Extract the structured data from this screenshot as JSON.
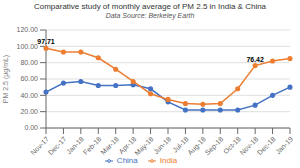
{
  "chart_data": {
    "type": "line",
    "title": "Comparative study of monthly average of PM 2.5 in India & China",
    "subtitle": "Data Source: Berkeley Earth",
    "ylabel": "PM 2.5 (μg/mL)",
    "categories": [
      "Nov-17",
      "Dec-17",
      "Jan-18",
      "Feb-18",
      "Mar-18",
      "Apr-18",
      "May-18",
      "Jun-18",
      "Jul-18",
      "Aug-18",
      "Sep-18",
      "Oct-18",
      "Nov-18",
      "Dec-18",
      "Jan-19"
    ],
    "series": [
      {
        "name": "China",
        "color": "#4472C4",
        "marker": "circle",
        "values": [
          44,
          55,
          57,
          52,
          52,
          53,
          48,
          32,
          22,
          22,
          22,
          22,
          28,
          40,
          50
        ]
      },
      {
        "name": "India",
        "color": "#ED7D31",
        "marker": "circle",
        "values": [
          97.71,
          93,
          93,
          86,
          72,
          57,
          42,
          35,
          30,
          29,
          30,
          48,
          76.42,
          82,
          85
        ]
      }
    ],
    "ylim": [
      0,
      120
    ],
    "yticks": [
      {
        "value": 0,
        "label": "0.00"
      },
      {
        "value": 20,
        "label": "20.00"
      },
      {
        "value": 40,
        "label": "40.00"
      },
      {
        "value": 60,
        "label": "60.00"
      },
      {
        "value": 80,
        "label": "80.00"
      },
      {
        "value": 100,
        "label": "100.00"
      },
      {
        "value": 120,
        "label": "120.00"
      }
    ],
    "grid": true,
    "legend": "bottom",
    "annotations": [
      {
        "label": "97.71",
        "x": "Nov-17",
        "y": 97.71
      },
      {
        "label": "76.42",
        "x": "Nov-18",
        "y": 76.42
      }
    ]
  }
}
